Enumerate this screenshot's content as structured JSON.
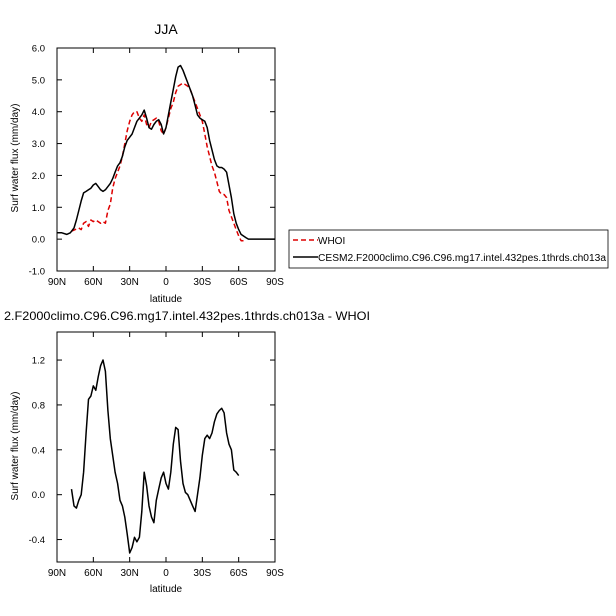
{
  "chart_data": [
    {
      "type": "line",
      "title": "JJA",
      "ylabel": "Surf water flux (mm/day)",
      "xlabel": "latitude",
      "xlim": [
        -90,
        90
      ],
      "ylim": [
        -1.0,
        6.0
      ],
      "xticks": [
        -90,
        -60,
        -30,
        0,
        30,
        60,
        90
      ],
      "xtick_labels": [
        "90N",
        "60N",
        "30N",
        "0",
        "30S",
        "60S",
        "90S"
      ],
      "yticks": [
        -1.0,
        0.0,
        1.0,
        2.0,
        3.0,
        4.0,
        5.0,
        6.0
      ],
      "ytick_labels": [
        "-1.0",
        "0.0",
        "1.0",
        "2.0",
        "3.0",
        "4.0",
        "5.0",
        "6.0"
      ],
      "legend_position": "right",
      "series": [
        {
          "name": "WHOI",
          "color": "#dd0000",
          "dashed": true,
          "x": [
            -78,
            -75,
            -72,
            -70,
            -68,
            -66,
            -64,
            -62,
            -60,
            -58,
            -56,
            -54,
            -52,
            -50,
            -48,
            -46,
            -44,
            -42,
            -40,
            -38,
            -36,
            -34,
            -32,
            -30,
            -28,
            -26,
            -24,
            -22,
            -20,
            -18,
            -16,
            -14,
            -12,
            -10,
            -8,
            -6,
            -4,
            -2,
            0,
            2,
            4,
            6,
            8,
            10,
            12,
            14,
            16,
            18,
            20,
            22,
            24,
            26,
            28,
            30,
            32,
            34,
            36,
            38,
            40,
            42,
            44,
            46,
            48,
            50,
            52,
            54,
            56,
            58,
            60,
            62,
            64,
            66,
            68,
            70
          ],
          "y": [
            0.25,
            0.3,
            0.35,
            0.3,
            0.5,
            0.55,
            0.4,
            0.6,
            0.55,
            0.6,
            0.55,
            0.5,
            0.55,
            0.5,
            0.9,
            1.1,
            1.6,
            1.9,
            2.1,
            2.3,
            2.6,
            3.0,
            3.4,
            3.7,
            3.9,
            4.0,
            4.0,
            3.8,
            3.7,
            3.9,
            3.6,
            3.5,
            3.7,
            3.75,
            3.8,
            3.7,
            3.4,
            3.3,
            3.5,
            3.8,
            4.1,
            4.3,
            4.6,
            4.8,
            4.85,
            4.9,
            4.85,
            4.8,
            4.7,
            4.5,
            4.3,
            4.1,
            3.9,
            3.7,
            3.3,
            2.9,
            2.6,
            2.3,
            2.1,
            1.8,
            1.5,
            1.4,
            1.4,
            1.3,
            0.9,
            0.7,
            0.5,
            0.3,
            0.1,
            -0.05,
            -0.05,
            null,
            null,
            null
          ]
        },
        {
          "name": "CESM2.F2000climo.C96.C96.mg17.intel.432pes.1thrds.ch013a",
          "color": "#000000",
          "dashed": false,
          "x": [
            -90,
            -86,
            -82,
            -79,
            -76,
            -74,
            -72,
            -70,
            -68,
            -66,
            -64,
            -62,
            -60,
            -58,
            -56,
            -54,
            -52,
            -50,
            -48,
            -46,
            -44,
            -42,
            -40,
            -38,
            -36,
            -34,
            -32,
            -30,
            -28,
            -26,
            -24,
            -22,
            -20,
            -18,
            -16,
            -14,
            -12,
            -10,
            -8,
            -6,
            -4,
            -2,
            0,
            2,
            4,
            6,
            8,
            10,
            12,
            14,
            16,
            18,
            20,
            22,
            24,
            26,
            28,
            30,
            32,
            34,
            36,
            38,
            40,
            42,
            44,
            46,
            48,
            50,
            52,
            54,
            56,
            58,
            60,
            62,
            64,
            66,
            68,
            70,
            72,
            75,
            78,
            82,
            86,
            90
          ],
          "y": [
            0.2,
            0.2,
            0.15,
            0.2,
            0.35,
            0.6,
            0.9,
            1.2,
            1.45,
            1.5,
            1.55,
            1.6,
            1.7,
            1.75,
            1.65,
            1.55,
            1.5,
            1.55,
            1.65,
            1.75,
            1.9,
            2.1,
            2.3,
            2.4,
            2.6,
            2.9,
            3.1,
            3.2,
            3.3,
            3.5,
            3.7,
            3.8,
            3.9,
            4.05,
            3.8,
            3.5,
            3.45,
            3.6,
            3.7,
            3.75,
            3.6,
            3.3,
            3.5,
            3.9,
            4.3,
            4.7,
            5.1,
            5.4,
            5.45,
            5.3,
            5.1,
            4.9,
            4.7,
            4.5,
            4.2,
            3.9,
            3.8,
            3.75,
            3.7,
            3.5,
            3.1,
            2.8,
            2.5,
            2.3,
            2.25,
            2.25,
            2.2,
            2.1,
            1.7,
            1.3,
            0.8,
            0.5,
            0.3,
            0.15,
            0.1,
            0.05,
            0.0,
            0.0,
            0.0,
            0.0,
            0.0,
            0.0,
            0.0,
            0.0
          ]
        }
      ]
    },
    {
      "type": "line",
      "title": "2.F2000climo.C96.C96.mg17.intel.432pes.1thrds.ch013a - WHOI",
      "ylabel": "Surf water flux (mm/day)",
      "xlabel": "latitude",
      "xlim": [
        -90,
        90
      ],
      "ylim": [
        -0.6,
        1.45
      ],
      "xticks": [
        -90,
        -60,
        -30,
        0,
        30,
        60,
        90
      ],
      "xtick_labels": [
        "90N",
        "60N",
        "30N",
        "0",
        "30S",
        "60S",
        "90S"
      ],
      "yticks": [
        -0.4,
        0.0,
        0.4,
        0.8,
        1.2
      ],
      "ytick_labels": [
        "-0.4",
        "0.0",
        "0.4",
        "0.8",
        "1.2"
      ],
      "series": [
        {
          "name": "",
          "color": "#000000",
          "dashed": false,
          "x": [
            -78,
            -76,
            -74,
            -72,
            -70,
            -68,
            -66,
            -64,
            -62,
            -60,
            -58,
            -56,
            -54,
            -52,
            -50,
            -48,
            -46,
            -44,
            -42,
            -40,
            -38,
            -36,
            -34,
            -32,
            -30,
            -28,
            -26,
            -24,
            -22,
            -20,
            -18,
            -16,
            -14,
            -12,
            -10,
            -8,
            -6,
            -4,
            -2,
            0,
            2,
            4,
            6,
            8,
            10,
            12,
            14,
            16,
            18,
            20,
            22,
            24,
            26,
            28,
            30,
            32,
            34,
            36,
            38,
            40,
            42,
            44,
            46,
            48,
            50,
            52,
            54,
            56,
            58,
            60,
            62,
            64,
            66,
            68,
            70
          ],
          "y": [
            0.05,
            -0.1,
            -0.12,
            -0.05,
            0.0,
            0.2,
            0.55,
            0.85,
            0.88,
            0.97,
            0.93,
            1.05,
            1.15,
            1.2,
            1.1,
            0.75,
            0.5,
            0.35,
            0.2,
            0.1,
            -0.05,
            -0.1,
            -0.2,
            -0.35,
            -0.52,
            -0.47,
            -0.38,
            -0.42,
            -0.38,
            -0.15,
            0.2,
            0.08,
            -0.1,
            -0.2,
            -0.25,
            -0.05,
            0.05,
            0.15,
            0.2,
            0.1,
            0.05,
            0.2,
            0.45,
            0.6,
            0.58,
            0.3,
            0.1,
            0.02,
            0.0,
            -0.05,
            -0.1,
            -0.15,
            0.0,
            0.15,
            0.35,
            0.5,
            0.53,
            0.5,
            0.55,
            0.65,
            0.72,
            0.75,
            0.77,
            0.73,
            0.55,
            0.45,
            0.4,
            0.22,
            0.2,
            0.17,
            null,
            null,
            null,
            null,
            null
          ]
        }
      ]
    }
  ]
}
